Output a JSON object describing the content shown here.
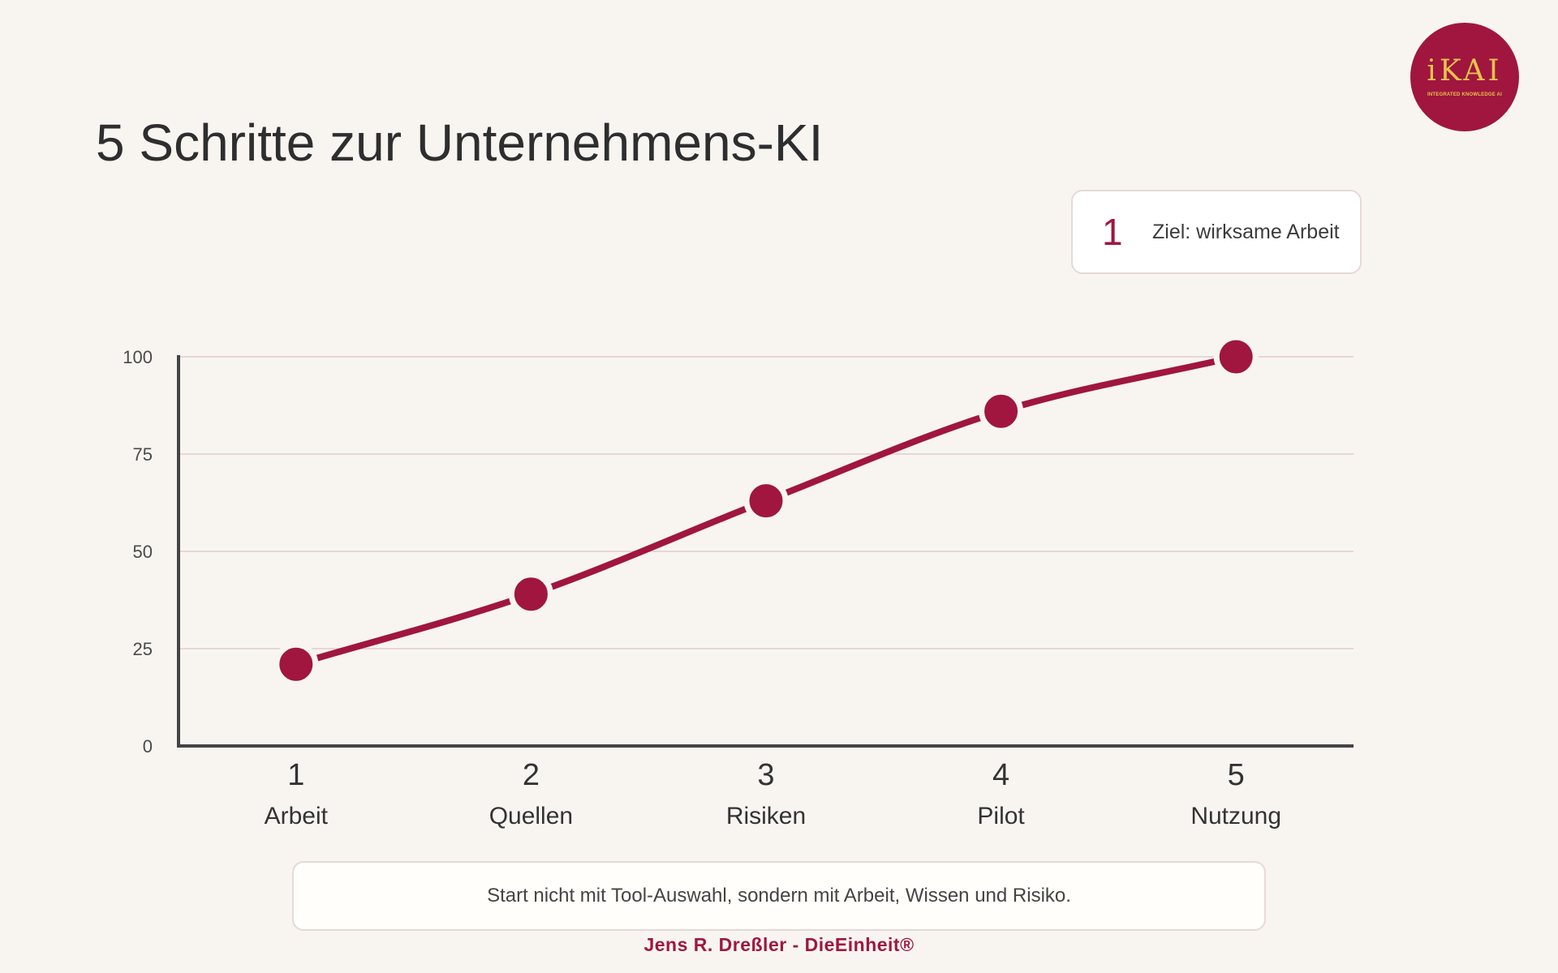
{
  "logo": {
    "word": "iKAI",
    "subtitle": "INTEGRATED KNOWLEDGE AI"
  },
  "title": "5 Schritte zur Unternehmens-KI",
  "active_step": {
    "number": "1",
    "label": "Ziel: wirksame Arbeit"
  },
  "chart_data": {
    "type": "line",
    "title": "",
    "xlabel": "",
    "ylabel": "",
    "x": [
      "1",
      "2",
      "3",
      "4",
      "5"
    ],
    "categories": [
      "Arbeit",
      "Quellen",
      "Risiken",
      "Pilot",
      "Nutzung"
    ],
    "values": [
      21,
      39,
      63,
      86,
      100
    ],
    "ylim": [
      0,
      100
    ],
    "yticks": [
      0,
      25,
      50,
      75,
      100
    ],
    "grid": true,
    "smooth": true,
    "legend": "none",
    "colors": {
      "line": "#a0163f",
      "grid": "#e8d6d3",
      "axis": "#444444"
    }
  },
  "note": "Start nicht mit Tool-Auswahl, sondern mit Arbeit, Wissen und Risiko.",
  "footer": "Jens R. Dreßler - DieEinheit®"
}
